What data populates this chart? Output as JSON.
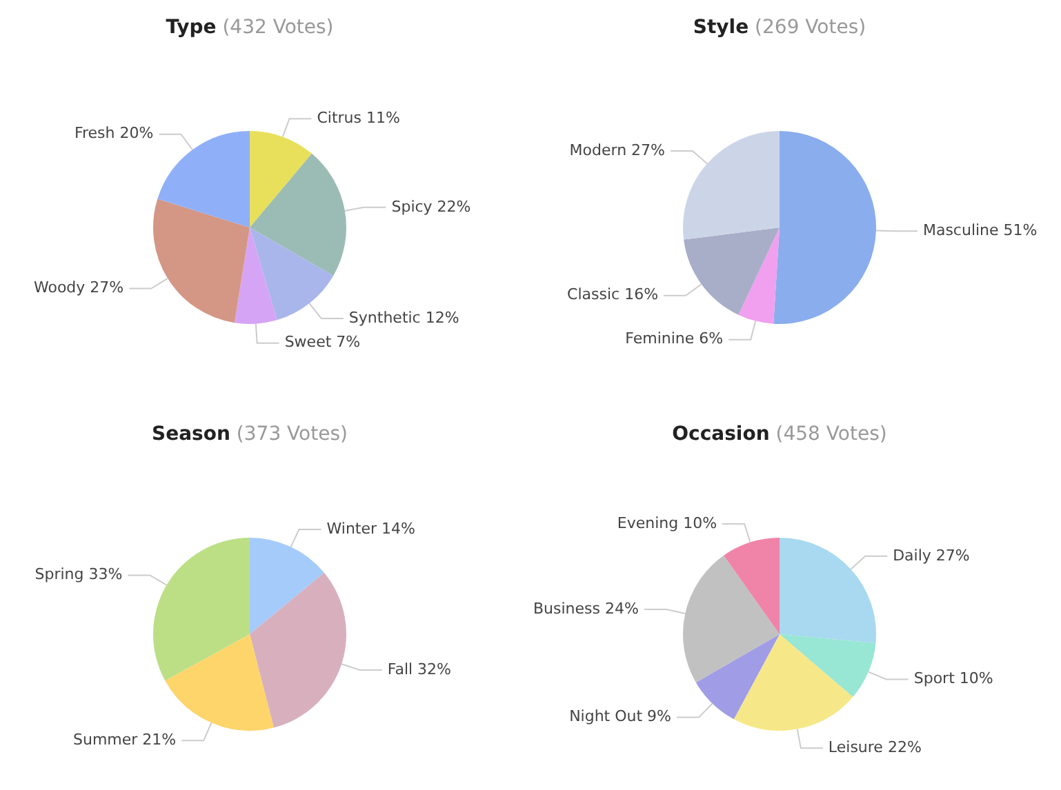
{
  "chart_data": [
    {
      "type": "pie",
      "title": "Type",
      "subtitle": "(432 Votes)",
      "categories": [
        "Citrus",
        "Spicy",
        "Synthetic",
        "Sweet",
        "Woody",
        "Fresh"
      ],
      "values": [
        11,
        22,
        12,
        7,
        27,
        20
      ],
      "value_labels": [
        "11%",
        "22%",
        "12%",
        "7%",
        "27%",
        "20%"
      ],
      "colors": [
        "#e8e05a",
        "#9bbcb4",
        "#a9b6ec",
        "#d6a4f5",
        "#d49685",
        "#8fb0f8"
      ],
      "legend": false
    },
    {
      "type": "pie",
      "title": "Style",
      "subtitle": "(269 Votes)",
      "categories": [
        "Masculine",
        "Feminine",
        "Classic",
        "Modern"
      ],
      "values": [
        51,
        6,
        16,
        27
      ],
      "value_labels": [
        "51%",
        "6%",
        "16%",
        "27%"
      ],
      "colors": [
        "#8aadee",
        "#f0a0ee",
        "#a8aec8",
        "#ccd5e8"
      ],
      "legend": false
    },
    {
      "type": "pie",
      "title": "Season",
      "subtitle": "(373 Votes)",
      "categories": [
        "Winter",
        "Fall",
        "Summer",
        "Spring"
      ],
      "values": [
        14,
        32,
        21,
        33
      ],
      "value_labels": [
        "14%",
        "32%",
        "21%",
        "33%"
      ],
      "colors": [
        "#a5cbfb",
        "#d8b0bd",
        "#fdd56b",
        "#bcdf86"
      ],
      "legend": false
    },
    {
      "type": "pie",
      "title": "Occasion",
      "subtitle": "(458 Votes)",
      "categories": [
        "Daily",
        "Sport",
        "Leisure",
        "Night Out",
        "Business",
        "Evening"
      ],
      "values": [
        27,
        10,
        22,
        9,
        24,
        10
      ],
      "value_labels": [
        "27%",
        "10%",
        "22%",
        "9%",
        "24%",
        "10%"
      ],
      "colors": [
        "#a8d9f0",
        "#98e6d4",
        "#f6e888",
        "#a09ce6",
        "#c1c1c1",
        "#f084a8"
      ],
      "legend": false
    }
  ]
}
